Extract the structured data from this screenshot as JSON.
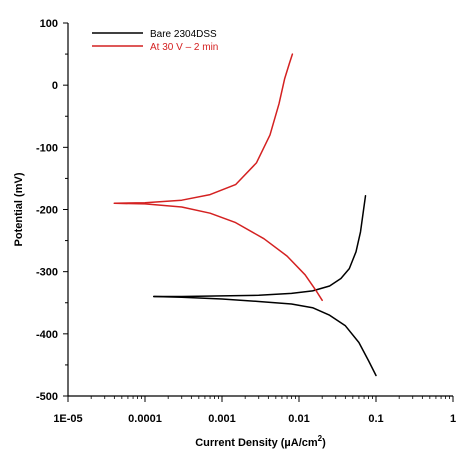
{
  "chart_data": {
    "type": "line",
    "title": "",
    "xlabel": "Current Density (µA/cm²)",
    "ylabel": "Potential (mV)",
    "x_scale": "log",
    "xlim": [
      1e-05,
      1
    ],
    "ylim": [
      -500,
      100
    ],
    "x_ticks": [
      1e-05,
      0.0001,
      0.001,
      0.01,
      0.1,
      1
    ],
    "x_tick_labels": [
      "1E-05",
      "0.0001",
      "0.001",
      "0.01",
      "0.1",
      "1"
    ],
    "y_ticks": [
      100,
      0,
      -100,
      -200,
      -300,
      -400,
      -500
    ],
    "y_tick_labels": [
      "100",
      "0",
      "-100",
      "-200",
      "-300",
      "-400",
      "-500"
    ],
    "grid": false,
    "legend_position": "top-left",
    "series": [
      {
        "name": "Bare 2304DSS",
        "color": "#000000",
        "branches": [
          [
            {
              "x": 0.00013,
              "y": -340
            },
            {
              "x": 0.0003,
              "y": -340
            },
            {
              "x": 0.001,
              "y": -339
            },
            {
              "x": 0.003,
              "y": -338
            },
            {
              "x": 0.008,
              "y": -335
            },
            {
              "x": 0.015,
              "y": -331
            },
            {
              "x": 0.025,
              "y": -323
            },
            {
              "x": 0.035,
              "y": -311
            },
            {
              "x": 0.045,
              "y": -295
            },
            {
              "x": 0.055,
              "y": -268
            },
            {
              "x": 0.063,
              "y": -236
            },
            {
              "x": 0.069,
              "y": -200
            },
            {
              "x": 0.073,
              "y": -178
            }
          ],
          [
            {
              "x": 0.00013,
              "y": -340
            },
            {
              "x": 0.0003,
              "y": -341
            },
            {
              "x": 0.001,
              "y": -344
            },
            {
              "x": 0.003,
              "y": -348
            },
            {
              "x": 0.008,
              "y": -352
            },
            {
              "x": 0.015,
              "y": -358
            },
            {
              "x": 0.025,
              "y": -370
            },
            {
              "x": 0.04,
              "y": -387
            },
            {
              "x": 0.06,
              "y": -414
            },
            {
              "x": 0.08,
              "y": -443
            },
            {
              "x": 0.1,
              "y": -467
            }
          ]
        ]
      },
      {
        "name": "At 30 V – 2 min",
        "color": "#d42121",
        "branches": [
          [
            {
              "x": 4e-05,
              "y": -190
            },
            {
              "x": 0.0001,
              "y": -189
            },
            {
              "x": 0.0003,
              "y": -185
            },
            {
              "x": 0.0007,
              "y": -176
            },
            {
              "x": 0.0015,
              "y": -160
            },
            {
              "x": 0.0028,
              "y": -125
            },
            {
              "x": 0.0042,
              "y": -80
            },
            {
              "x": 0.0055,
              "y": -30
            },
            {
              "x": 0.0065,
              "y": 10
            },
            {
              "x": 0.0075,
              "y": 35
            },
            {
              "x": 0.0082,
              "y": 50
            }
          ],
          [
            {
              "x": 4e-05,
              "y": -190
            },
            {
              "x": 0.0001,
              "y": -191
            },
            {
              "x": 0.0003,
              "y": -196
            },
            {
              "x": 0.0007,
              "y": -206
            },
            {
              "x": 0.0015,
              "y": -221
            },
            {
              "x": 0.0035,
              "y": -247
            },
            {
              "x": 0.007,
              "y": -275
            },
            {
              "x": 0.012,
              "y": -305
            },
            {
              "x": 0.017,
              "y": -332
            },
            {
              "x": 0.02,
              "y": -346
            }
          ]
        ]
      }
    ]
  }
}
